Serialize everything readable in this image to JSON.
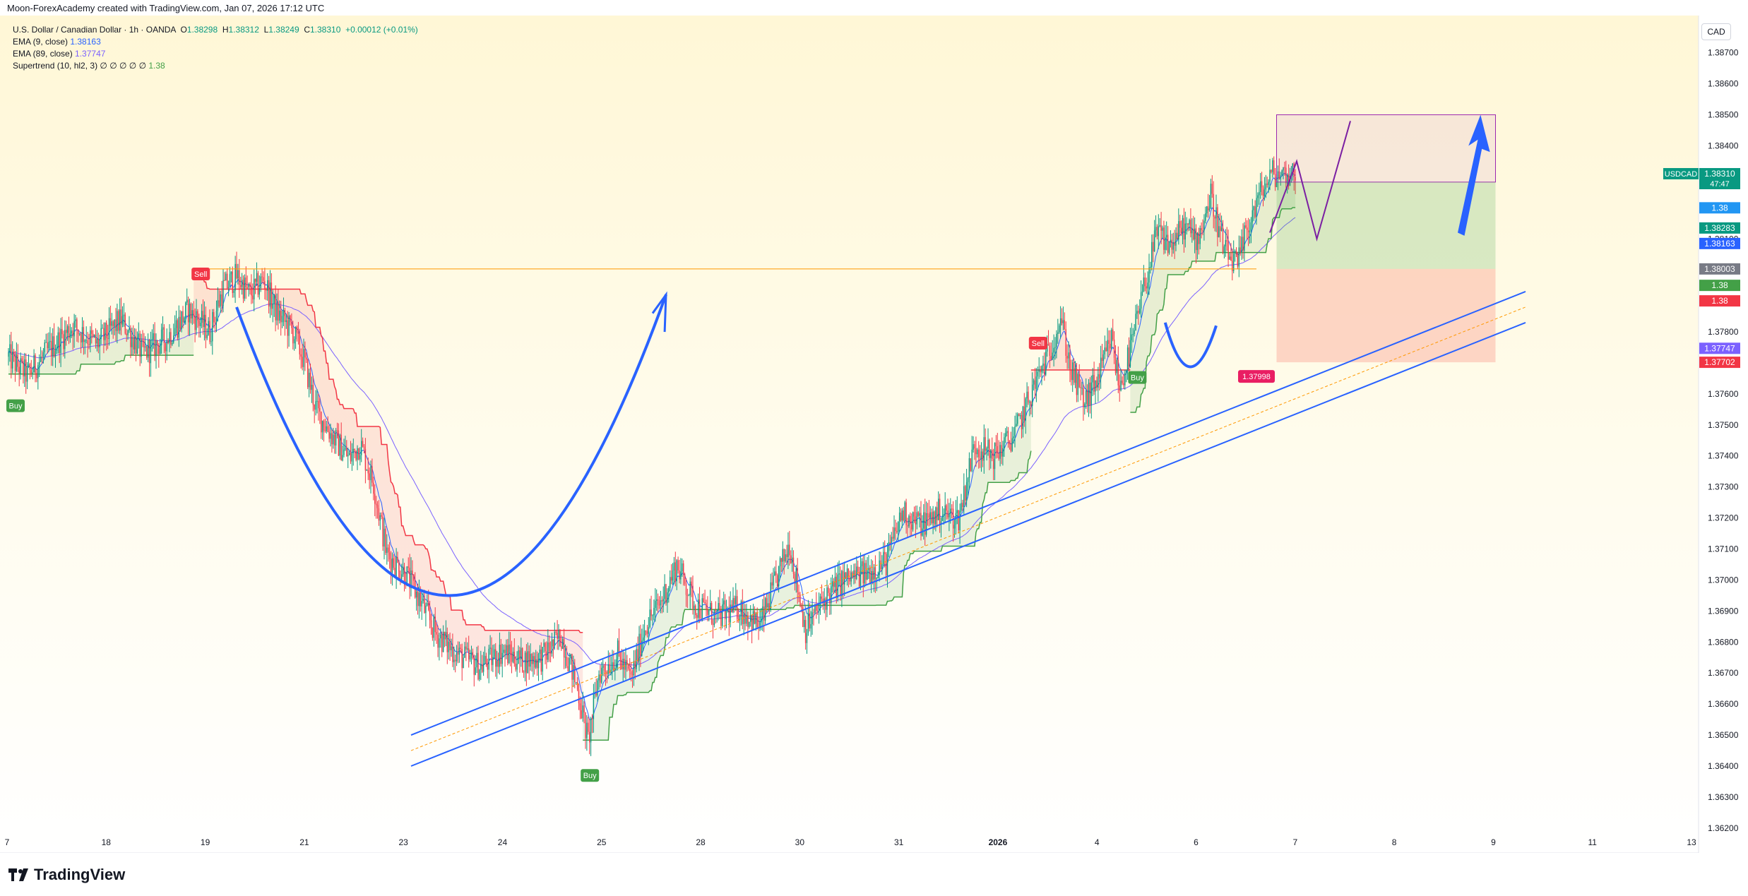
{
  "header": {
    "credit": "Moon-ForexAcademy created with TradingView.com, Jan 07, 2026 17:12 UTC"
  },
  "legend": {
    "symbol_line": "U.S. Dollar / Canadian Dollar · 1h · OANDA",
    "ohlc": {
      "o_label": "O",
      "o": "1.38298",
      "h_label": "H",
      "h": "1.38312",
      "l_label": "L",
      "l": "1.38249",
      "c_label": "C",
      "c": "1.38310",
      "chg": "+0.00012 (+0.01%)"
    },
    "ema9": {
      "label": "EMA (9, close)",
      "value": "1.38163"
    },
    "ema89": {
      "label": "EMA (89, close)",
      "value": "1.37747"
    },
    "supertrend": {
      "label": "Supertrend (10, hl2, 3)",
      "dots": "∅ ∅ ∅ ∅ ∅",
      "value": "1.38"
    }
  },
  "currency_button": "CAD",
  "brand": "TradingView",
  "colors": {
    "bull": "#089981",
    "bear": "#f23645",
    "ema9": "#2962ff",
    "ema89": "#7b61ff",
    "st_up": "#43a047",
    "st_down": "#f23645",
    "hline": "#ff9800"
  },
  "chart_data": {
    "type": "candlestick",
    "symbol": "USDCAD",
    "timeframe": "1h",
    "y_range": [
      1.3612,
      1.3882
    ],
    "x_ticks": [
      "7",
      "18",
      "19",
      "21",
      "23",
      "24",
      "25",
      "28",
      "30",
      "31",
      "2026",
      "4",
      "6",
      "7",
      "8",
      "9",
      "11",
      "13"
    ],
    "y_ticks": [
      "1.38700",
      "1.38600",
      "1.38500",
      "1.38400",
      "1.38300",
      "1.38200",
      "1.38100",
      "1.38000",
      "1.37900",
      "1.37800",
      "1.37700",
      "1.37600",
      "1.37500",
      "1.37400",
      "1.37300",
      "1.37200",
      "1.37100",
      "1.37000",
      "1.36900",
      "1.36800",
      "1.36700",
      "1.36600",
      "1.36500",
      "1.36400",
      "1.36300",
      "1.36200"
    ],
    "close_path": [
      [
        0,
        1.3772
      ],
      [
        14,
        1.3766
      ],
      [
        30,
        1.3774
      ],
      [
        48,
        1.3782
      ],
      [
        66,
        1.3776
      ],
      [
        84,
        1.3784
      ],
      [
        100,
        1.3773
      ],
      [
        118,
        1.3778
      ],
      [
        134,
        1.3787
      ],
      [
        150,
        1.378
      ],
      [
        160,
        1.3794
      ],
      [
        170,
        1.3798
      ],
      [
        180,
        1.3792
      ],
      [
        190,
        1.3797
      ],
      [
        200,
        1.3786
      ],
      [
        212,
        1.378
      ],
      [
        220,
        1.3771
      ],
      [
        230,
        1.3754
      ],
      [
        242,
        1.3746
      ],
      [
        254,
        1.3739
      ],
      [
        262,
        1.3744
      ],
      [
        272,
        1.3731
      ],
      [
        282,
        1.3708
      ],
      [
        296,
        1.3702
      ],
      [
        306,
        1.3694
      ],
      [
        318,
        1.3683
      ],
      [
        334,
        1.3676
      ],
      [
        352,
        1.3672
      ],
      [
        368,
        1.3677
      ],
      [
        382,
        1.3674
      ],
      [
        398,
        1.3675
      ],
      [
        412,
        1.3682
      ],
      [
        424,
        1.3665
      ],
      [
        432,
        1.3648
      ],
      [
        440,
        1.367
      ],
      [
        454,
        1.3676
      ],
      [
        464,
        1.3668
      ],
      [
        474,
        1.3685
      ],
      [
        486,
        1.3693
      ],
      [
        498,
        1.3705
      ],
      [
        512,
        1.3692
      ],
      [
        528,
        1.3688
      ],
      [
        544,
        1.3691
      ],
      [
        560,
        1.3685
      ],
      [
        572,
        1.37
      ],
      [
        582,
        1.3712
      ],
      [
        594,
        1.3684
      ],
      [
        608,
        1.3694
      ],
      [
        622,
        1.37
      ],
      [
        638,
        1.3702
      ],
      [
        654,
        1.3706
      ],
      [
        666,
        1.3722
      ],
      [
        680,
        1.3718
      ],
      [
        694,
        1.3722
      ],
      [
        708,
        1.372
      ],
      [
        720,
        1.3744
      ],
      [
        734,
        1.374
      ],
      [
        750,
        1.3747
      ],
      [
        764,
        1.3762
      ],
      [
        776,
        1.3774
      ],
      [
        784,
        1.3785
      ],
      [
        792,
        1.3767
      ],
      [
        802,
        1.3757
      ],
      [
        812,
        1.3765
      ],
      [
        822,
        1.3778
      ],
      [
        828,
        1.3762
      ],
      [
        836,
        1.3774
      ],
      [
        846,
        1.3794
      ],
      [
        856,
        1.3812
      ],
      [
        866,
        1.3808
      ],
      [
        876,
        1.3814
      ],
      [
        886,
        1.381
      ],
      [
        896,
        1.3824
      ],
      [
        906,
        1.3806
      ],
      [
        916,
        1.3801
      ],
      [
        922,
        1.3812
      ],
      [
        932,
        1.3824
      ],
      [
        942,
        1.3831
      ]
    ],
    "indicators": {
      "ema9": {
        "last": 1.38163
      },
      "ema89": {
        "last": 1.37747
      },
      "supertrend_signals": [
        {
          "type": "Buy",
          "x": 0
        },
        {
          "type": "Sell",
          "x": 138
        },
        {
          "type": "Buy",
          "x": 428
        },
        {
          "type": "Sell",
          "x": 762
        },
        {
          "type": "Buy",
          "x": 836
        }
      ]
    },
    "levels": {
      "horizontal": 1.38003,
      "box_top": 1.385,
      "box_mid": 1.38283,
      "stop": 1.37702
    },
    "price_labels": [
      {
        "value": "1.38310",
        "extra": "47:47",
        "price": 1.3831,
        "color": "#089981",
        "symbol": "USDCAD"
      },
      {
        "value": "1.38",
        "price": 1.382,
        "color": "#2196f3"
      },
      {
        "value": "1.38283",
        "price": 1.38135,
        "color": "#089981"
      },
      {
        "value": "1.38163",
        "price": 1.38085,
        "color": "#2962ff"
      },
      {
        "value": "1.38003",
        "price": 1.38003,
        "color": "#787b86"
      },
      {
        "value": "1.38",
        "price": 1.3795,
        "color": "#43a047"
      },
      {
        "value": "1.38",
        "price": 1.379,
        "color": "#f23645"
      },
      {
        "value": "1.37747",
        "price": 1.37747,
        "color": "#7b61ff"
      },
      {
        "value": "1.37702",
        "price": 1.37702,
        "color": "#f23645"
      }
    ],
    "low_marker": {
      "value": "1.37998"
    },
    "annotations": [
      "Sell",
      "Buy"
    ]
  }
}
